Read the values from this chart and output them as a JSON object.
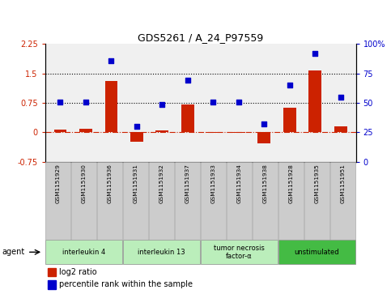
{
  "title": "GDS5261 / A_24_P97559",
  "samples": [
    "GSM1151929",
    "GSM1151930",
    "GSM1151936",
    "GSM1151931",
    "GSM1151932",
    "GSM1151937",
    "GSM1151933",
    "GSM1151934",
    "GSM1151938",
    "GSM1151928",
    "GSM1151935",
    "GSM1151951"
  ],
  "log2_ratio": [
    0.07,
    0.09,
    1.3,
    -0.25,
    0.04,
    0.72,
    -0.02,
    -0.02,
    -0.28,
    0.62,
    1.58,
    0.15
  ],
  "percentile": [
    51,
    51,
    86,
    30,
    49,
    69,
    51,
    51,
    32,
    65,
    92,
    55
  ],
  "groups": [
    {
      "label": "interleukin 4",
      "start": 0,
      "end": 3,
      "color": "#bbeebb"
    },
    {
      "label": "interleukin 13",
      "start": 3,
      "end": 6,
      "color": "#bbeebb"
    },
    {
      "label": "tumor necrosis\nfactor-α",
      "start": 6,
      "end": 9,
      "color": "#bbeebb"
    },
    {
      "label": "unstimulated",
      "start": 9,
      "end": 12,
      "color": "#44bb44"
    }
  ],
  "bar_color": "#cc2200",
  "dot_color": "#0000cc",
  "ylim_left": [
    -0.75,
    2.25
  ],
  "ylim_right": [
    0,
    100
  ],
  "yticks_left": [
    -0.75,
    0,
    0.75,
    1.5,
    2.25
  ],
  "yticks_right": [
    0,
    25,
    50,
    75,
    100
  ],
  "hline1": 0.75,
  "hline2": 1.5,
  "hline0": 0.0
}
